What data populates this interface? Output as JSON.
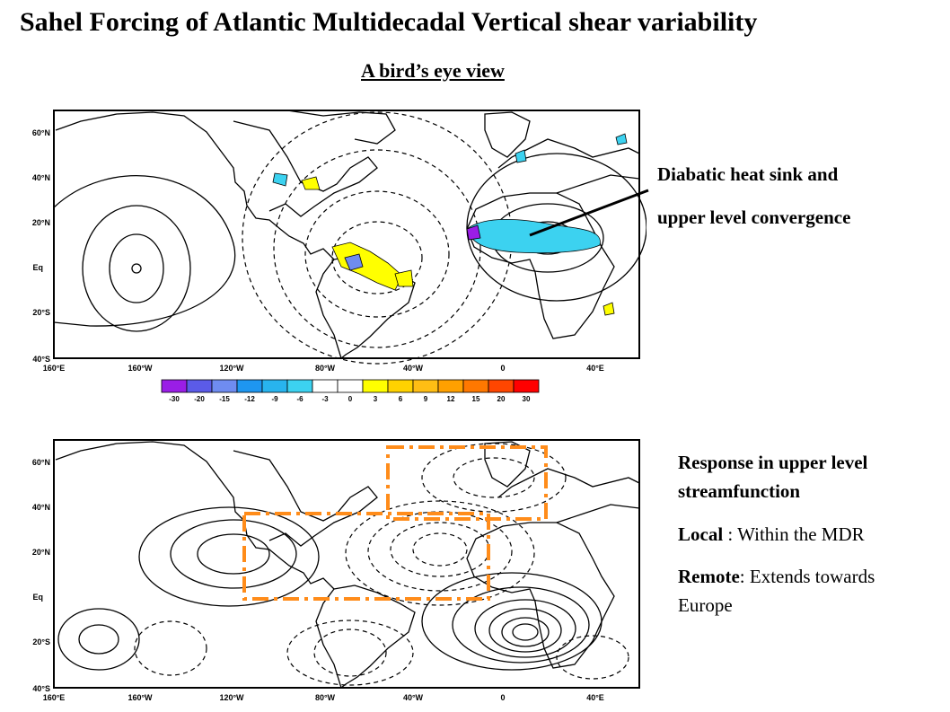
{
  "title": "Sahel Forcing of Atlantic Multidecadal Vertical shear variability",
  "subtitle": "A bird’s eye view",
  "map_axes": {
    "lat_labels": [
      "60°N",
      "40°N",
      "20°N",
      "Eq",
      "20°S",
      "40°S"
    ],
    "lon_labels": [
      "160°E",
      "160°W",
      "120°W",
      "80°W",
      "40°W",
      "0",
      "40°E"
    ]
  },
  "colorbar": {
    "labels": [
      "-30",
      "-20",
      "-15",
      "-12",
      "-9",
      "-6",
      "-3",
      "0",
      "3",
      "6",
      "9",
      "12",
      "15",
      "20",
      "30"
    ],
    "colors": [
      "#9a1ee6",
      "#5b5be8",
      "#6f8cf0",
      "#1e96f0",
      "#28b4ee",
      "#3cd2f0",
      "#ffffff",
      "#ffffff",
      "#ffff00",
      "#ffd200",
      "#ffbe14",
      "#ffa000",
      "#ff7800",
      "#ff4600",
      "#ff0000"
    ]
  },
  "top_annotation": {
    "line1": "Diabatic heat sink and",
    "line2": "upper level convergence"
  },
  "bottom_text": {
    "heading_line1": "Response in upper level",
    "heading_line2": "streamfunction",
    "local_label": "Local",
    "local_text": " : Within the MDR",
    "remote_label": "Remote",
    "remote_text_line1": ": Extends towards",
    "remote_text_line2": "Europe"
  },
  "colors": {
    "box_orange": "#ff8c1a",
    "sink_cyan": "#3cd2f0",
    "source_yellow": "#ffff00"
  }
}
